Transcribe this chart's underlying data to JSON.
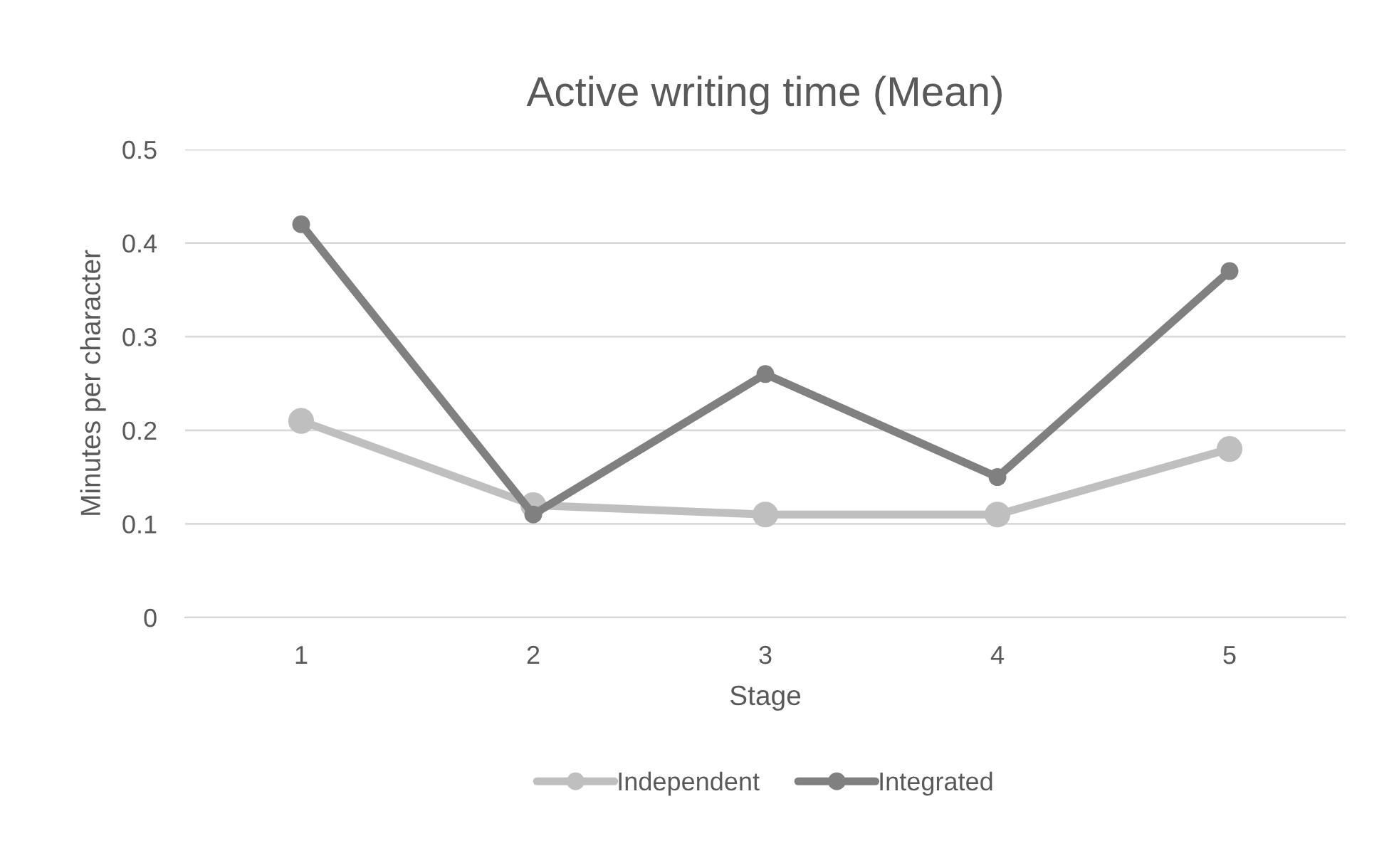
{
  "chart_data": {
    "type": "line",
    "title": "Active writing time (Mean)",
    "xlabel": "Stage",
    "ylabel": "Minutes per character",
    "categories": [
      "1",
      "2",
      "3",
      "4",
      "5"
    ],
    "series": [
      {
        "name": "Independent",
        "color": "#bfbfbf",
        "values": [
          0.21,
          0.12,
          0.11,
          0.11,
          0.18
        ]
      },
      {
        "name": "Integrated",
        "color": "#808080",
        "values": [
          0.42,
          0.11,
          0.26,
          0.15,
          0.37
        ]
      }
    ],
    "ylim": [
      0,
      0.5
    ],
    "yticks": [
      0,
      0.1,
      0.2,
      0.3,
      0.4,
      0.5
    ],
    "grid": "y",
    "legend": "bottom",
    "marker": "circle",
    "line_style": "solid"
  }
}
